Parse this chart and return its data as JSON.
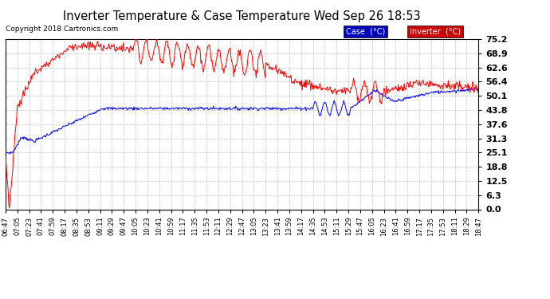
{
  "title": "Inverter Temperature & Case Temperature Wed Sep 26 18:53",
  "copyright": "Copyright 2018 Cartronics.com",
  "legend_case_label": "Case  (°C)",
  "legend_inverter_label": "Inverter  (°C)",
  "case_color": "#0000ff",
  "inverter_color": "#ff0000",
  "legend_case_bg": "#0000bb",
  "legend_inverter_bg": "#cc0000",
  "background_color": "#ffffff",
  "grid_color": "#aaaaaa",
  "ylim": [
    0.0,
    75.2
  ],
  "yticks": [
    0.0,
    6.3,
    12.5,
    18.8,
    25.1,
    31.3,
    37.6,
    43.8,
    50.1,
    56.4,
    62.6,
    68.9,
    75.2
  ],
  "num_points": 720,
  "x_labels": [
    "06:47",
    "07:05",
    "07:23",
    "07:41",
    "07:59",
    "08:17",
    "08:35",
    "08:53",
    "09:11",
    "09:29",
    "09:47",
    "10:05",
    "10:23",
    "10:41",
    "10:59",
    "11:17",
    "11:35",
    "11:53",
    "12:11",
    "12:29",
    "12:47",
    "13:05",
    "13:23",
    "13:41",
    "13:59",
    "14:17",
    "14:35",
    "14:53",
    "15:11",
    "15:29",
    "15:47",
    "16:05",
    "16:23",
    "16:41",
    "16:59",
    "17:17",
    "17:35",
    "17:53",
    "18:11",
    "18:29",
    "18:47"
  ]
}
